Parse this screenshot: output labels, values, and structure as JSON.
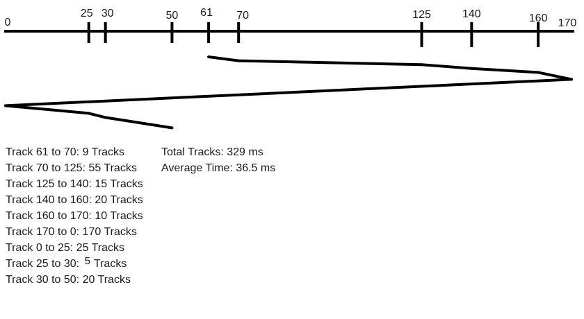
{
  "axis": {
    "min": 0,
    "max": 170,
    "ticks": [
      {
        "value": 0,
        "label": "0",
        "marked": false
      },
      {
        "value": 25,
        "label": "25",
        "marked": true
      },
      {
        "value": 30,
        "label": "30",
        "marked": true
      },
      {
        "value": 50,
        "label": "50",
        "marked": true
      },
      {
        "value": 61,
        "label": "61",
        "marked": true
      },
      {
        "value": 70,
        "label": "70",
        "marked": true
      },
      {
        "value": 125,
        "label": "125",
        "marked": true
      },
      {
        "value": 140,
        "label": "140",
        "marked": true
      },
      {
        "value": 160,
        "label": "160",
        "marked": true
      },
      {
        "value": 170,
        "label": "170",
        "marked": false
      }
    ]
  },
  "seek_path": [
    61,
    70,
    125,
    140,
    160,
    170,
    0,
    25,
    30,
    50
  ],
  "movements": [
    {
      "prefix": "Track 61 to 70: ",
      "count": "9",
      "suffix": " Tracks",
      "raised": false
    },
    {
      "prefix": "Track 70 to 125: ",
      "count": "55",
      "suffix": " Tracks",
      "raised": false
    },
    {
      "prefix": "Track 125 to 140: ",
      "count": "15",
      "suffix": " Tracks",
      "raised": false
    },
    {
      "prefix": "Track 140 to 160: ",
      "count": "20",
      "suffix": " Tracks",
      "raised": false
    },
    {
      "prefix": "Track 160 to 170: ",
      "count": "10",
      "suffix": " Tracks",
      "raised": false
    },
    {
      "prefix": "Track 170 to 0: ",
      "count": "170",
      "suffix": " Tracks",
      "raised": false
    },
    {
      "prefix": "Track 0 to 25: ",
      "count": "25",
      "suffix": " Tracks",
      "raised": false
    },
    {
      "prefix": "Track 25 to 30: ",
      "count": "5",
      "suffix": "Tracks",
      "raised": true
    },
    {
      "prefix": "Track 30 to 50: ",
      "count": "20",
      "suffix": " Tracks",
      "raised": false
    }
  ],
  "summary": {
    "total": "Total Tracks: 329 ms",
    "average": "Average Time: 36.5 ms"
  },
  "colors": {
    "ink": "#000000",
    "text": "#1a1a1a"
  }
}
